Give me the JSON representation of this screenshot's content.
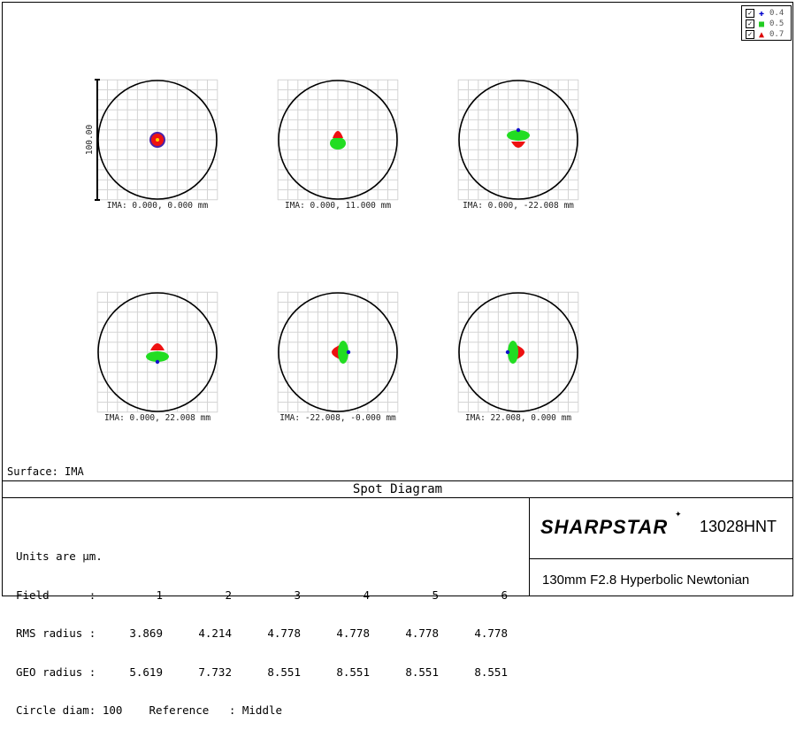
{
  "legend": [
    {
      "value": "0.4",
      "marker": "plus",
      "color": "#0000cc"
    },
    {
      "value": "0.5",
      "marker": "square",
      "color": "#22cc22"
    },
    {
      "value": "0.7",
      "marker": "triangle",
      "color": "#dd0000"
    }
  ],
  "scale_label": "100.00",
  "spots": [
    {
      "label": "IMA: 0.000, 0.000 mm",
      "shape": "on-axis"
    },
    {
      "label": "IMA: 0.000, 11.000 mm",
      "shape": "up-small"
    },
    {
      "label": "IMA: 0.000, -22.008 mm",
      "shape": "up"
    },
    {
      "label": "IMA: 0.000, 22.008 mm",
      "shape": "down"
    },
    {
      "label": "IMA: -22.008, -0.000 mm",
      "shape": "left"
    },
    {
      "label": "IMA: 22.008, 0.000 mm",
      "shape": "right"
    }
  ],
  "surface_label": "Surface: IMA",
  "title": "Spot Diagram",
  "info": {
    "units": "Units are µm.",
    "field_label": "Field      :",
    "rms_label": "RMS radius :",
    "geo_label": "GEO radius :",
    "fields": [
      "1",
      "2",
      "3",
      "4",
      "5",
      "6"
    ],
    "rms": [
      "3.869",
      "4.214",
      "4.778",
      "4.778",
      "4.778",
      "4.778"
    ],
    "geo": [
      "5.619",
      "7.732",
      "8.551",
      "8.551",
      "8.551",
      "8.551"
    ],
    "circle_line": "Circle diam: 100    Reference   : Middle"
  },
  "brand": "SHARPSTAR",
  "model": "13028HNT",
  "subtitle": "130mm F2.8 Hyperbolic Newtonian"
}
